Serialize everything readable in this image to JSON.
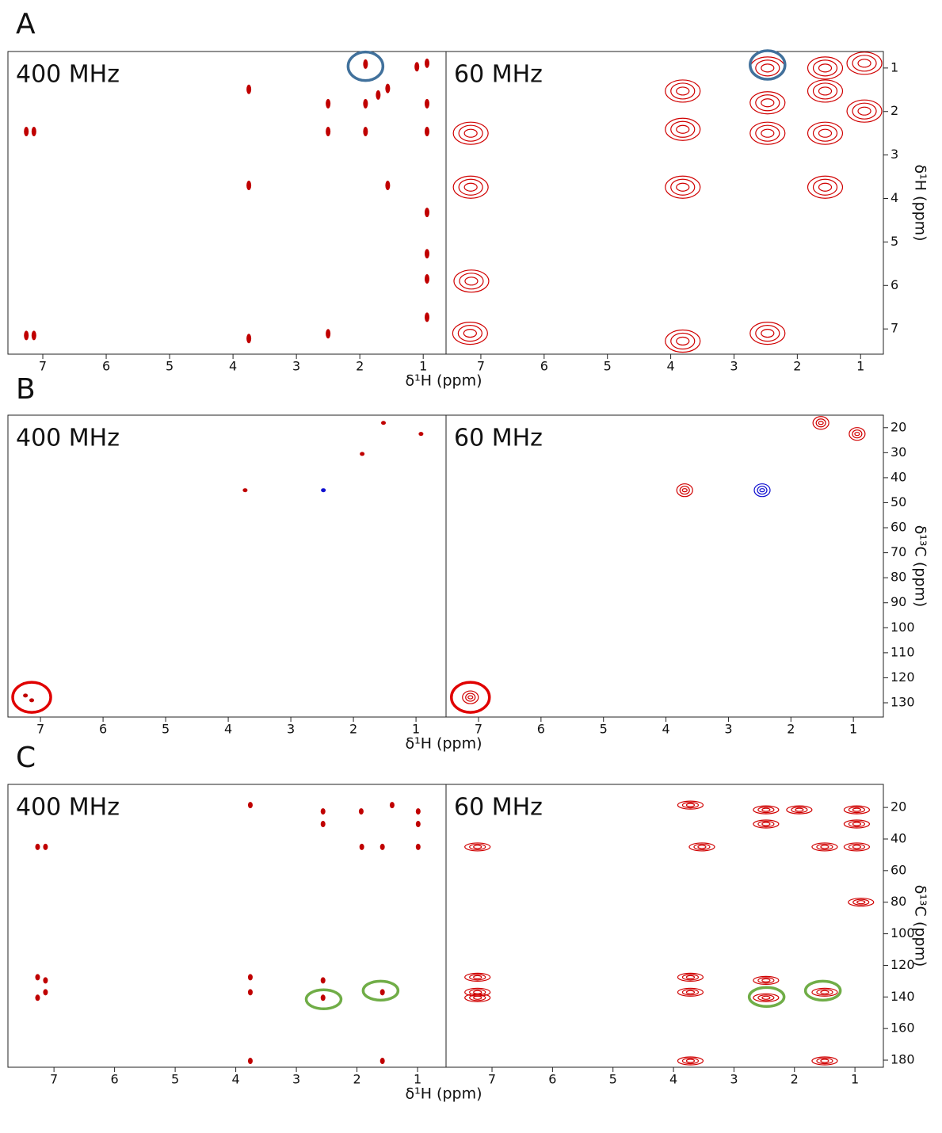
{
  "chart_data": [
    {
      "type": "contour",
      "panel": "A",
      "subplots": [
        "400 MHz",
        "60 MHz"
      ],
      "xlabel": "δ¹H (ppm)",
      "ylabel": "δ¹H (ppm)",
      "xlim": [
        7.55,
        0.64
      ],
      "xticks": [
        7,
        6,
        5,
        4,
        3,
        2,
        1
      ],
      "ylim": [
        0.62,
        7.58
      ],
      "yticks": [
        1,
        2,
        3,
        4,
        5,
        6,
        7
      ],
      "series": [
        {
          "subplot": 0,
          "style": "filled",
          "color": "#c00000",
          "x": [
            1.91,
            0.94,
            0.94,
            0.94,
            1.91,
            1.91,
            1.56,
            2.5,
            2.5,
            3.75,
            3.75,
            1.56,
            7.26,
            7.14,
            7.26,
            7.14,
            3.75,
            2.5,
            0.94,
            0.94,
            0.94,
            0.94,
            1.1,
            1.71
          ],
          "values": [
            0.91,
            0.89,
            1.82,
            2.46,
            1.82,
            2.46,
            1.47,
            1.82,
            2.46,
            1.49,
            3.7,
            3.7,
            2.46,
            2.46,
            7.15,
            7.15,
            7.22,
            7.11,
            4.32,
            5.27,
            5.85,
            6.73,
            0.97,
            1.62
          ]
        },
        {
          "subplot": 1,
          "style": "contour",
          "color": "#d00000",
          "x": [
            7.16,
            7.16,
            7.17,
            7.15,
            3.81,
            3.81,
            3.81,
            3.81,
            2.47,
            2.47,
            2.47,
            2.47,
            1.56,
            1.56,
            1.56,
            1.56,
            0.94,
            0.94
          ],
          "values": [
            2.5,
            3.74,
            7.1,
            5.9,
            1.53,
            3.74,
            7.28,
            2.41,
            1.0,
            1.8,
            2.5,
            7.1,
            1.0,
            1.53,
            2.5,
            3.74,
            0.89,
            1.99
          ]
        }
      ],
      "highlights": [
        {
          "subplot": 0,
          "color": "#41719c",
          "x": 1.91,
          "y": 0.96
        },
        {
          "subplot": 1,
          "color": "#41719c",
          "x": 2.47,
          "y": 0.93
        }
      ]
    },
    {
      "type": "contour",
      "panel": "B",
      "subplots": [
        "400 MHz",
        "60 MHz"
      ],
      "xlabel": "δ¹H (ppm)",
      "ylabel": "δ¹³C (ppm)",
      "xlim": [
        7.52,
        0.52
      ],
      "xticks": [
        7,
        6,
        5,
        4,
        3,
        2,
        1
      ],
      "ylim": [
        15,
        135.7
      ],
      "yticks": [
        20,
        30,
        40,
        50,
        60,
        70,
        80,
        90,
        100,
        110,
        120,
        130
      ],
      "series": [
        {
          "subplot": 0,
          "style": "filled",
          "color": "#c00000",
          "x": [
            1.52,
            0.92,
            1.86,
            3.73,
            7.24,
            7.14
          ],
          "values": [
            18.1,
            22.5,
            30.5,
            45,
            127.1,
            129
          ]
        },
        {
          "subplot": 0,
          "style": "filled",
          "color": "#1010d0",
          "x": [
            2.48
          ],
          "values": [
            45
          ]
        },
        {
          "subplot": 1,
          "style": "contour",
          "color": "#d00000",
          "x": [
            1.52,
            0.94,
            3.7,
            7.13
          ],
          "values": [
            18.1,
            22.5,
            45,
            127.8
          ]
        },
        {
          "subplot": 1,
          "style": "contour",
          "color": "#1010d0",
          "x": [
            2.46
          ],
          "values": [
            45
          ]
        }
      ],
      "highlights": [
        {
          "subplot": 0,
          "color": "#e00000",
          "x": 7.14,
          "y": 127.8
        },
        {
          "subplot": 1,
          "color": "#e00000",
          "x": 7.13,
          "y": 127.8
        }
      ]
    },
    {
      "type": "contour",
      "panel": "C",
      "subplots": [
        "400 MHz",
        "60 MHz"
      ],
      "xlabel": "δ¹H (ppm)",
      "ylabel": "δ¹³C (ppm)",
      "xlim": [
        7.76,
        0.53
      ],
      "xticks": [
        7,
        6,
        5,
        4,
        3,
        2,
        1
      ],
      "ylim": [
        5.4,
        184.5
      ],
      "yticks": [
        20,
        40,
        60,
        80,
        100,
        120,
        140,
        160,
        180
      ],
      "series": [
        {
          "subplot": 0,
          "style": "filled",
          "color": "#c00000",
          "x": [
            3.76,
            2.56,
            2.56,
            1.93,
            1.42,
            0.99,
            0.99,
            1.58,
            0.99,
            7.27,
            7.14,
            1.92,
            7.27,
            7.14,
            7.27,
            7.14,
            3.76,
            3.76,
            2.56,
            2.56,
            1.58,
            3.76,
            1.58
          ],
          "values": [
            18.5,
            22.5,
            30.5,
            22.5,
            18.5,
            22.5,
            30.5,
            45,
            45,
            45,
            45,
            45,
            127.5,
            129.5,
            140.5,
            137,
            127.5,
            137,
            129.5,
            140.5,
            137,
            180.5,
            180.5
          ]
        },
        {
          "subplot": 1,
          "style": "contour",
          "color": "#d00000",
          "x": [
            3.72,
            2.47,
            2.47,
            0.97,
            0.97,
            1.5,
            0.97,
            7.24,
            3.53,
            1.92,
            0.9,
            7.24,
            7.24,
            7.24,
            3.72,
            3.72,
            2.47,
            2.47,
            1.5,
            3.72,
            1.5
          ],
          "values": [
            18.5,
            21.5,
            30.5,
            21.5,
            30.5,
            45,
            45,
            45,
            45,
            21.5,
            80,
            127.5,
            137,
            140.5,
            127.5,
            137,
            129.5,
            140.5,
            137,
            180.5,
            180.5
          ]
        }
      ],
      "highlights": [
        {
          "subplot": 0,
          "color": "#70ad47",
          "x": 2.55,
          "y": 141.5
        },
        {
          "subplot": 0,
          "color": "#70ad47",
          "x": 1.61,
          "y": 136
        },
        {
          "subplot": 1,
          "color": "#70ad47",
          "x": 2.46,
          "y": 140
        },
        {
          "subplot": 1,
          "color": "#70ad47",
          "x": 1.53,
          "y": 136
        }
      ]
    }
  ]
}
